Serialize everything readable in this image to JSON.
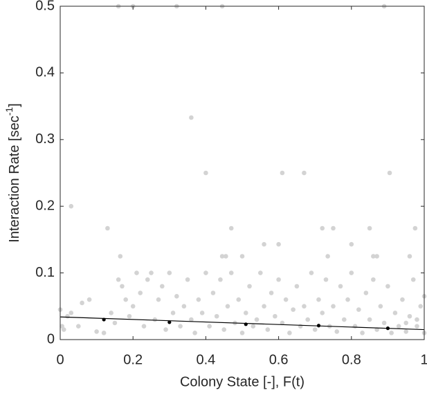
{
  "chart_data": {
    "type": "scatter",
    "xlabel": "Colony State [-], F(t)",
    "ylabel": "Interaction Rate [sec",
    "ylabel_superscript": "-1",
    "ylabel_end": "]",
    "xlim": [
      0,
      1
    ],
    "xticks": [
      0,
      0.2,
      0.4,
      0.6,
      0.8,
      1
    ],
    "ylim": [
      0,
      0.5
    ],
    "yticks": [
      0,
      0.1,
      0.2,
      0.3,
      0.4,
      0.5
    ],
    "series": [
      {
        "style": "points",
        "color": "#d3d3d3",
        "x": [
          0.16,
          0.2,
          0.32,
          0.445,
          0.89,
          0.03,
          0.13,
          0.36,
          0.4,
          0.61,
          0.67,
          0.905,
          0.47,
          0.72,
          0.75,
          0.85,
          0.975,
          0.165,
          0.445,
          0.455,
          0.5,
          0.735,
          0.86,
          0.87,
          0.96,
          0.56,
          0.6,
          0.8,
          0.0,
          0.005,
          0.01,
          0.02,
          0.03,
          0.05,
          0.06,
          0.08,
          0.1,
          0.12,
          0.14,
          0.15,
          0.16,
          0.17,
          0.18,
          0.19,
          0.2,
          0.21,
          0.22,
          0.23,
          0.24,
          0.25,
          0.26,
          0.27,
          0.28,
          0.29,
          0.3,
          0.31,
          0.32,
          0.33,
          0.34,
          0.35,
          0.36,
          0.37,
          0.38,
          0.39,
          0.4,
          0.41,
          0.42,
          0.43,
          0.44,
          0.45,
          0.46,
          0.47,
          0.48,
          0.49,
          0.5,
          0.51,
          0.52,
          0.53,
          0.54,
          0.55,
          0.56,
          0.57,
          0.58,
          0.59,
          0.6,
          0.61,
          0.62,
          0.63,
          0.64,
          0.65,
          0.66,
          0.67,
          0.68,
          0.69,
          0.7,
          0.71,
          0.72,
          0.73,
          0.74,
          0.75,
          0.76,
          0.77,
          0.78,
          0.79,
          0.8,
          0.81,
          0.82,
          0.83,
          0.84,
          0.85,
          0.86,
          0.87,
          0.88,
          0.89,
          0.9,
          0.91,
          0.92,
          0.93,
          0.94,
          0.95,
          0.96,
          0.97,
          0.98,
          0.99,
          1.0,
          1.0,
          0.98,
          0.95
        ],
        "values": [
          0.5,
          0.5,
          0.5,
          0.5,
          0.5,
          0.2,
          0.167,
          0.333,
          0.25,
          0.25,
          0.25,
          0.25,
          0.167,
          0.167,
          0.167,
          0.167,
          0.167,
          0.125,
          0.125,
          0.125,
          0.125,
          0.125,
          0.125,
          0.125,
          0.125,
          0.143,
          0.143,
          0.143,
          0.045,
          0.02,
          0.015,
          0.035,
          0.04,
          0.02,
          0.055,
          0.06,
          0.012,
          0.01,
          0.04,
          0.025,
          0.09,
          0.08,
          0.06,
          0.035,
          0.05,
          0.1,
          0.07,
          0.02,
          0.09,
          0.1,
          0.03,
          0.06,
          0.08,
          0.015,
          0.1,
          0.04,
          0.065,
          0.02,
          0.05,
          0.09,
          0.03,
          0.01,
          0.06,
          0.04,
          0.1,
          0.02,
          0.07,
          0.035,
          0.09,
          0.015,
          0.05,
          0.1,
          0.025,
          0.06,
          0.01,
          0.04,
          0.08,
          0.02,
          0.03,
          0.1,
          0.05,
          0.015,
          0.07,
          0.035,
          0.09,
          0.025,
          0.06,
          0.01,
          0.045,
          0.08,
          0.02,
          0.05,
          0.03,
          0.1,
          0.015,
          0.06,
          0.04,
          0.09,
          0.02,
          0.05,
          0.012,
          0.08,
          0.03,
          0.06,
          0.1,
          0.02,
          0.045,
          0.01,
          0.07,
          0.03,
          0.09,
          0.015,
          0.05,
          0.025,
          0.08,
          0.01,
          0.04,
          0.02,
          0.06,
          0.012,
          0.035,
          0.09,
          0.02,
          0.05,
          0.065,
          0.01,
          0.03,
          0.025
        ]
      },
      {
        "style": "line",
        "color": "#000000",
        "x": [
          0,
          1
        ],
        "values": [
          0.034,
          0.015
        ]
      },
      {
        "style": "markers",
        "color": "#000000",
        "x": [
          0.12,
          0.3,
          0.51,
          0.71,
          0.9
        ],
        "values": [
          0.03,
          0.026,
          0.023,
          0.021,
          0.017
        ]
      }
    ]
  }
}
